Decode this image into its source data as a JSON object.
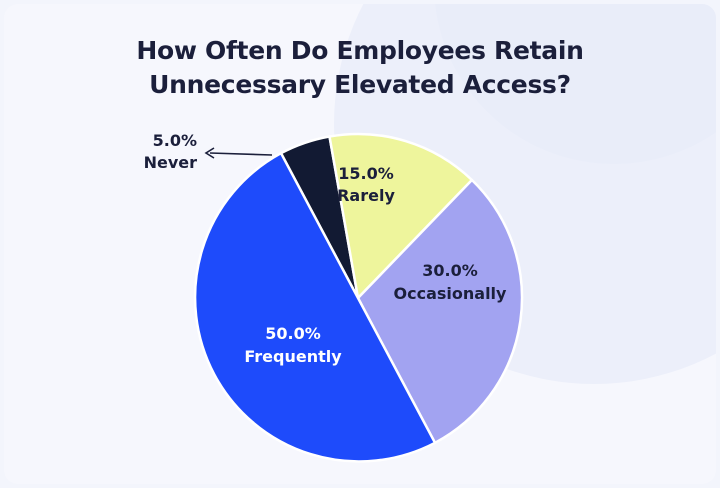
{
  "chart_data": {
    "type": "pie",
    "title_lines": [
      "How Often Do Employees Retain",
      "Unnecessary Elevated Access?"
    ],
    "slices": [
      {
        "label": "Never",
        "value": 5.0,
        "value_text": "5.0%",
        "color": "#121a33",
        "text_color": "#1b1f3b"
      },
      {
        "label": "Rarely",
        "value": 15.0,
        "value_text": "15.0%",
        "color": "#eef59c",
        "text_color": "#1b1f3b"
      },
      {
        "label": "Occasionally",
        "value": 30.0,
        "value_text": "30.0%",
        "color": "#a2a3f1",
        "text_color": "#1b1f3b"
      },
      {
        "label": "Frequently",
        "value": 50.0,
        "value_text": "50.0%",
        "color": "#1e4bfb",
        "text_color": "#ffffff"
      }
    ],
    "legend": "none",
    "start_angle_deg": -28
  }
}
